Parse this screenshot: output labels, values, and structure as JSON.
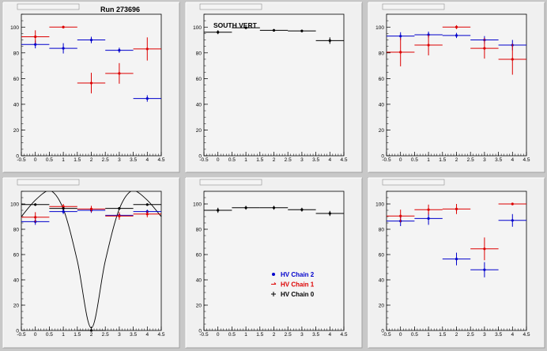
{
  "run_label": "Run 273696",
  "colors": {
    "chain2": "#0000cc",
    "chain1": "#dd0000",
    "chain0": "#000000"
  },
  "chart_data": [
    {
      "type": "scatter",
      "title": "",
      "annotation": "Run 273696",
      "xlim": [
        -0.5,
        4.5
      ],
      "ylim": [
        0,
        110
      ],
      "xticks": [
        "-0.5",
        "0",
        "0.5",
        "1",
        "1.5",
        "2",
        "2.5",
        "3",
        "3.5",
        "4",
        "4.5"
      ],
      "yticks": [
        "0",
        "20",
        "40",
        "60",
        "80",
        "100"
      ],
      "series": [
        {
          "name": "HV Chain 2",
          "color": "#0000cc",
          "points": [
            {
              "x": 0,
              "y": 86.5,
              "e": 3
            },
            {
              "x": 1,
              "y": 83.5,
              "e": 4
            },
            {
              "x": 2,
              "y": 90,
              "e": 2.5
            },
            {
              "x": 3,
              "y": 82,
              "e": 2
            },
            {
              "x": 4,
              "y": 44.5,
              "e": 2.5
            }
          ]
        },
        {
          "name": "HV Chain 1",
          "color": "#dd0000",
          "points": [
            {
              "x": 0,
              "y": 92.5,
              "e": 5
            },
            {
              "x": 1,
              "y": 100,
              "e": 1
            },
            {
              "x": 2,
              "y": 56.5,
              "e": 8
            },
            {
              "x": 3,
              "y": 64,
              "e": 8
            },
            {
              "x": 4,
              "y": 83,
              "e": 9
            }
          ]
        }
      ]
    },
    {
      "type": "scatter",
      "title": "",
      "annotation": "SOUTH VERT",
      "xlim": [
        -0.5,
        4.5
      ],
      "ylim": [
        0,
        110
      ],
      "xticks": [
        "-0.5",
        "0",
        "0.5",
        "1",
        "1.5",
        "2",
        "2.5",
        "3",
        "3.5",
        "4",
        "4.5"
      ],
      "yticks": [
        "0",
        "20",
        "40",
        "60",
        "80",
        "100"
      ],
      "series": [
        {
          "name": "HV Chain 0",
          "color": "#000000",
          "points": [
            {
              "x": 0,
              "y": 96,
              "e": 1.5
            },
            {
              "x": 1,
              "y": 99.5,
              "e": 1
            },
            {
              "x": 2,
              "y": 97.5,
              "e": 1
            },
            {
              "x": 3,
              "y": 97,
              "e": 1
            },
            {
              "x": 4,
              "y": 89.5,
              "e": 2.5
            }
          ]
        }
      ]
    },
    {
      "type": "scatter",
      "title": "",
      "xlim": [
        -0.5,
        4.5
      ],
      "ylim": [
        0,
        110
      ],
      "xticks": [
        "-0.5",
        "0",
        "0.5",
        "1",
        "1.5",
        "2",
        "2.5",
        "3",
        "3.5",
        "4",
        "4.5"
      ],
      "yticks": [
        "0",
        "20",
        "40",
        "60",
        "80",
        "100"
      ],
      "series": [
        {
          "name": "HV Chain 2",
          "color": "#0000cc",
          "points": [
            {
              "x": 0,
              "y": 93,
              "e": 3
            },
            {
              "x": 1,
              "y": 94,
              "e": 2.5
            },
            {
              "x": 2,
              "y": 93.5,
              "e": 2
            },
            {
              "x": 3,
              "y": 90,
              "e": 3
            },
            {
              "x": 4,
              "y": 86,
              "e": 4
            }
          ]
        },
        {
          "name": "HV Chain 1",
          "color": "#dd0000",
          "points": [
            {
              "x": 0,
              "y": 80.5,
              "e": 11
            },
            {
              "x": 1,
              "y": 86,
              "e": 8
            },
            {
              "x": 2,
              "y": 100,
              "e": 1.5
            },
            {
              "x": 3,
              "y": 83.5,
              "e": 8
            },
            {
              "x": 4,
              "y": 75,
              "e": 12
            }
          ]
        }
      ]
    },
    {
      "type": "scatter",
      "title": "",
      "xlim": [
        -0.5,
        4.5
      ],
      "ylim": [
        0,
        110
      ],
      "xticks": [
        "-0.5",
        "0",
        "0.5",
        "1",
        "1.5",
        "2",
        "2.5",
        "3",
        "3.5",
        "4",
        "4.5"
      ],
      "yticks": [
        "0",
        "20",
        "40",
        "60",
        "80",
        "100"
      ],
      "series": [
        {
          "name": "HV Chain 2",
          "color": "#0000cc",
          "points": [
            {
              "x": 0,
              "y": 86,
              "e": 2.5
            },
            {
              "x": 1,
              "y": 94,
              "e": 2
            },
            {
              "x": 2,
              "y": 95,
              "e": 2
            },
            {
              "x": 3,
              "y": 91,
              "e": 2
            },
            {
              "x": 4,
              "y": 94,
              "e": 1.5
            }
          ]
        },
        {
          "name": "HV Chain 1",
          "color": "#dd0000",
          "points": [
            {
              "x": 0,
              "y": 89.5,
              "e": 4
            },
            {
              "x": 1,
              "y": 98,
              "e": 2
            },
            {
              "x": 2,
              "y": 96,
              "e": 2.5
            },
            {
              "x": 3,
              "y": 90.5,
              "e": 3
            },
            {
              "x": 4,
              "y": 92,
              "e": 2.5
            }
          ]
        },
        {
          "name": "HV Chain 0",
          "color": "#000000",
          "points": [
            {
              "x": 0,
              "y": 99.5,
              "e": 1
            },
            {
              "x": 1,
              "y": 96.5,
              "e": 1
            },
            {
              "x": 2,
              "y": 0,
              "e": 0
            },
            {
              "x": 3,
              "y": 96.5,
              "e": 1
            },
            {
              "x": 4,
              "y": 99.5,
              "e": 1
            }
          ]
        }
      ],
      "curve": {
        "color": "#000000",
        "x": [
          -0.5,
          0,
          0.5,
          1,
          1.5,
          2,
          2.5,
          3,
          3.5,
          4,
          4.5
        ],
        "y": [
          90,
          103,
          111,
          96,
          55,
          2,
          55,
          96,
          111,
          103,
          90
        ]
      }
    },
    {
      "type": "scatter",
      "title": "",
      "xlim": [
        -0.5,
        4.5
      ],
      "ylim": [
        0,
        110
      ],
      "xticks": [
        "-0.5",
        "0",
        "0.5",
        "1",
        "1.5",
        "2",
        "2.5",
        "3",
        "3.5",
        "4",
        "4.5"
      ],
      "yticks": [
        "0",
        "20",
        "40",
        "60",
        "80",
        "100"
      ],
      "series": [
        {
          "name": "HV Chain 0",
          "color": "#000000",
          "points": [
            {
              "x": 0,
              "y": 95,
              "e": 2
            },
            {
              "x": 1,
              "y": 97,
              "e": 1.5
            },
            {
              "x": 2,
              "y": 97,
              "e": 1.5
            },
            {
              "x": 3,
              "y": 95.5,
              "e": 1.5
            },
            {
              "x": 4,
              "y": 92.5,
              "e": 2
            }
          ]
        }
      ],
      "legend": [
        {
          "label": "HV Chain 2",
          "color": "#0000cc",
          "marker": "dot"
        },
        {
          "label": "HV Chain 1",
          "color": "#dd0000",
          "marker": "arrow"
        },
        {
          "label": "HV Chain 0",
          "color": "#000000",
          "marker": "plus"
        }
      ]
    },
    {
      "type": "scatter",
      "title": "",
      "xlim": [
        -0.5,
        4.5
      ],
      "ylim": [
        0,
        110
      ],
      "xticks": [
        "-0.5",
        "0",
        "0.5",
        "1",
        "1.5",
        "2",
        "2.5",
        "3",
        "3.5",
        "4",
        "4.5"
      ],
      "yticks": [
        "0",
        "20",
        "40",
        "60",
        "80",
        "100"
      ],
      "series": [
        {
          "name": "HV Chain 2",
          "color": "#0000cc",
          "points": [
            {
              "x": 0,
              "y": 86.5,
              "e": 4
            },
            {
              "x": 1,
              "y": 88.5,
              "e": 5
            },
            {
              "x": 2,
              "y": 56.5,
              "e": 5
            },
            {
              "x": 3,
              "y": 48,
              "e": 6
            },
            {
              "x": 4,
              "y": 87,
              "e": 5
            }
          ]
        },
        {
          "name": "HV Chain 1",
          "color": "#dd0000",
          "points": [
            {
              "x": 0,
              "y": 90.5,
              "e": 5
            },
            {
              "x": 1,
              "y": 95.5,
              "e": 4
            },
            {
              "x": 2,
              "y": 96,
              "e": 4
            },
            {
              "x": 3,
              "y": 64.5,
              "e": 9
            },
            {
              "x": 4,
              "y": 100,
              "e": 1
            }
          ]
        }
      ]
    }
  ]
}
